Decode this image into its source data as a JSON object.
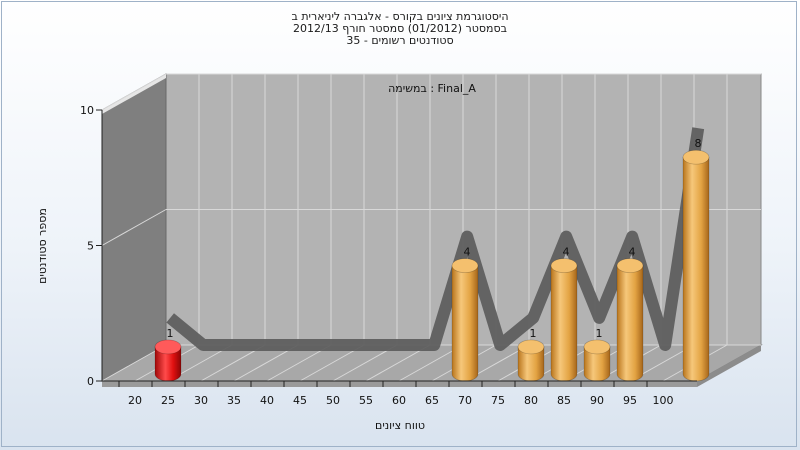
{
  "chart_data": {
    "type": "bar",
    "title_lines": [
      "היסטוגרמת ציונים בקורס - אלגברה ליניארית ב",
      "בסמסטר  (01/2012)  סמסטר חורף 2012/13",
      "סטודנטים רשומים - 35"
    ],
    "legend_note": "במשימה : Final_A",
    "xlabel": "טווח ציונים",
    "ylabel": "מספר סטודנטים",
    "ylim": [
      0,
      10
    ],
    "y_ticks": [
      "0",
      "5",
      "10"
    ],
    "x_ticks": [
      "20",
      "25",
      "30",
      "35",
      "40",
      "45",
      "50",
      "55",
      "60",
      "65",
      "70",
      "75",
      "80",
      "85",
      "90",
      "95",
      "100"
    ],
    "bars": [
      {
        "range_start": 20,
        "value": 1,
        "label": "1",
        "color": "#e01010"
      },
      {
        "range_start": 65,
        "value": 4,
        "label": "4",
        "color": "#e3a343"
      },
      {
        "range_start": 75,
        "value": 1,
        "label": "1",
        "color": "#e3a343"
      },
      {
        "range_start": 80,
        "value": 4,
        "label": "4",
        "color": "#e3a343"
      },
      {
        "range_start": 85,
        "value": 1,
        "label": "1",
        "color": "#e3a343"
      },
      {
        "range_start": 90,
        "value": 4,
        "label": "4",
        "color": "#e3a343"
      },
      {
        "range_start": 100,
        "value": 8,
        "label": "8",
        "color": "#e3a343"
      }
    ],
    "grid": true,
    "colors": {
      "plot_back": "#b3b3b3",
      "wall": "#7f7f7f",
      "floor": "#a8a8a8",
      "grid": "#d8d8d8",
      "ribbon": "#5a5a5a",
      "ribbon_highlight": "#3a75cc",
      "bar_low": "#e01010",
      "bar": "#e3a343"
    }
  }
}
